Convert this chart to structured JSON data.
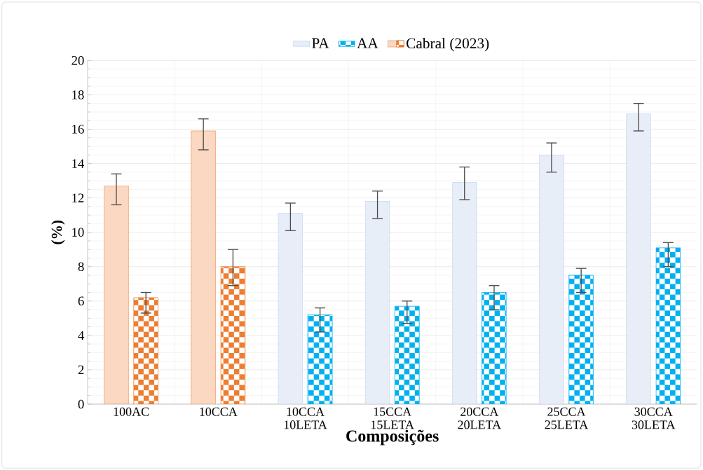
{
  "chart_data": {
    "type": "bar",
    "xlabel": "Composições",
    "ylabel": "(%)",
    "categories": [
      "100AC",
      "10CCA",
      "10CCA 10LETA",
      "15CCA 15LETA",
      "20CCA 20LETA",
      "25CCA 25LETA",
      "30CCA 30LETA"
    ],
    "series": [
      {
        "name": "PA",
        "color": "#b4c7e7",
        "colors": [
          "#ed7d31",
          "#ed7d31",
          "#b4c7e7",
          "#b4c7e7",
          "#b4c7e7",
          "#b4c7e7",
          "#b4c7e7"
        ],
        "values": [
          12.7,
          15.9,
          11.1,
          11.8,
          12.9,
          14.5,
          16.9
        ],
        "errors": [
          [
            11.6,
            13.4
          ],
          [
            14.8,
            16.6
          ],
          [
            10.1,
            11.7
          ],
          [
            10.8,
            12.4
          ],
          [
            11.9,
            13.8
          ],
          [
            13.5,
            15.2
          ],
          [
            15.9,
            17.5
          ]
        ]
      },
      {
        "name": "AA",
        "color": "#00b0f0",
        "colors": [
          "#ed7d31",
          "#ed7d31",
          "#00b0f0",
          "#00b0f0",
          "#00b0f0",
          "#00b0f0",
          "#00b0f0"
        ],
        "values": [
          6.2,
          8.0,
          5.2,
          5.7,
          6.5,
          7.5,
          9.1
        ],
        "errors": [
          [
            5.3,
            6.5
          ],
          [
            6.9,
            9.0
          ],
          [
            4.2,
            5.6
          ],
          [
            4.7,
            6.0
          ],
          [
            5.5,
            6.9
          ],
          [
            6.5,
            7.9
          ],
          [
            8.0,
            9.4
          ]
        ]
      },
      {
        "name": "Cabral (2023)",
        "color": "#ed7d31",
        "values": [
          null,
          null,
          null,
          null,
          null,
          null,
          null
        ]
      }
    ],
    "ylim": [
      0,
      20
    ],
    "yticks": [
      0,
      2,
      4,
      6,
      8,
      10,
      12,
      14,
      16,
      18,
      20
    ],
    "grid": true,
    "legend": "top"
  }
}
